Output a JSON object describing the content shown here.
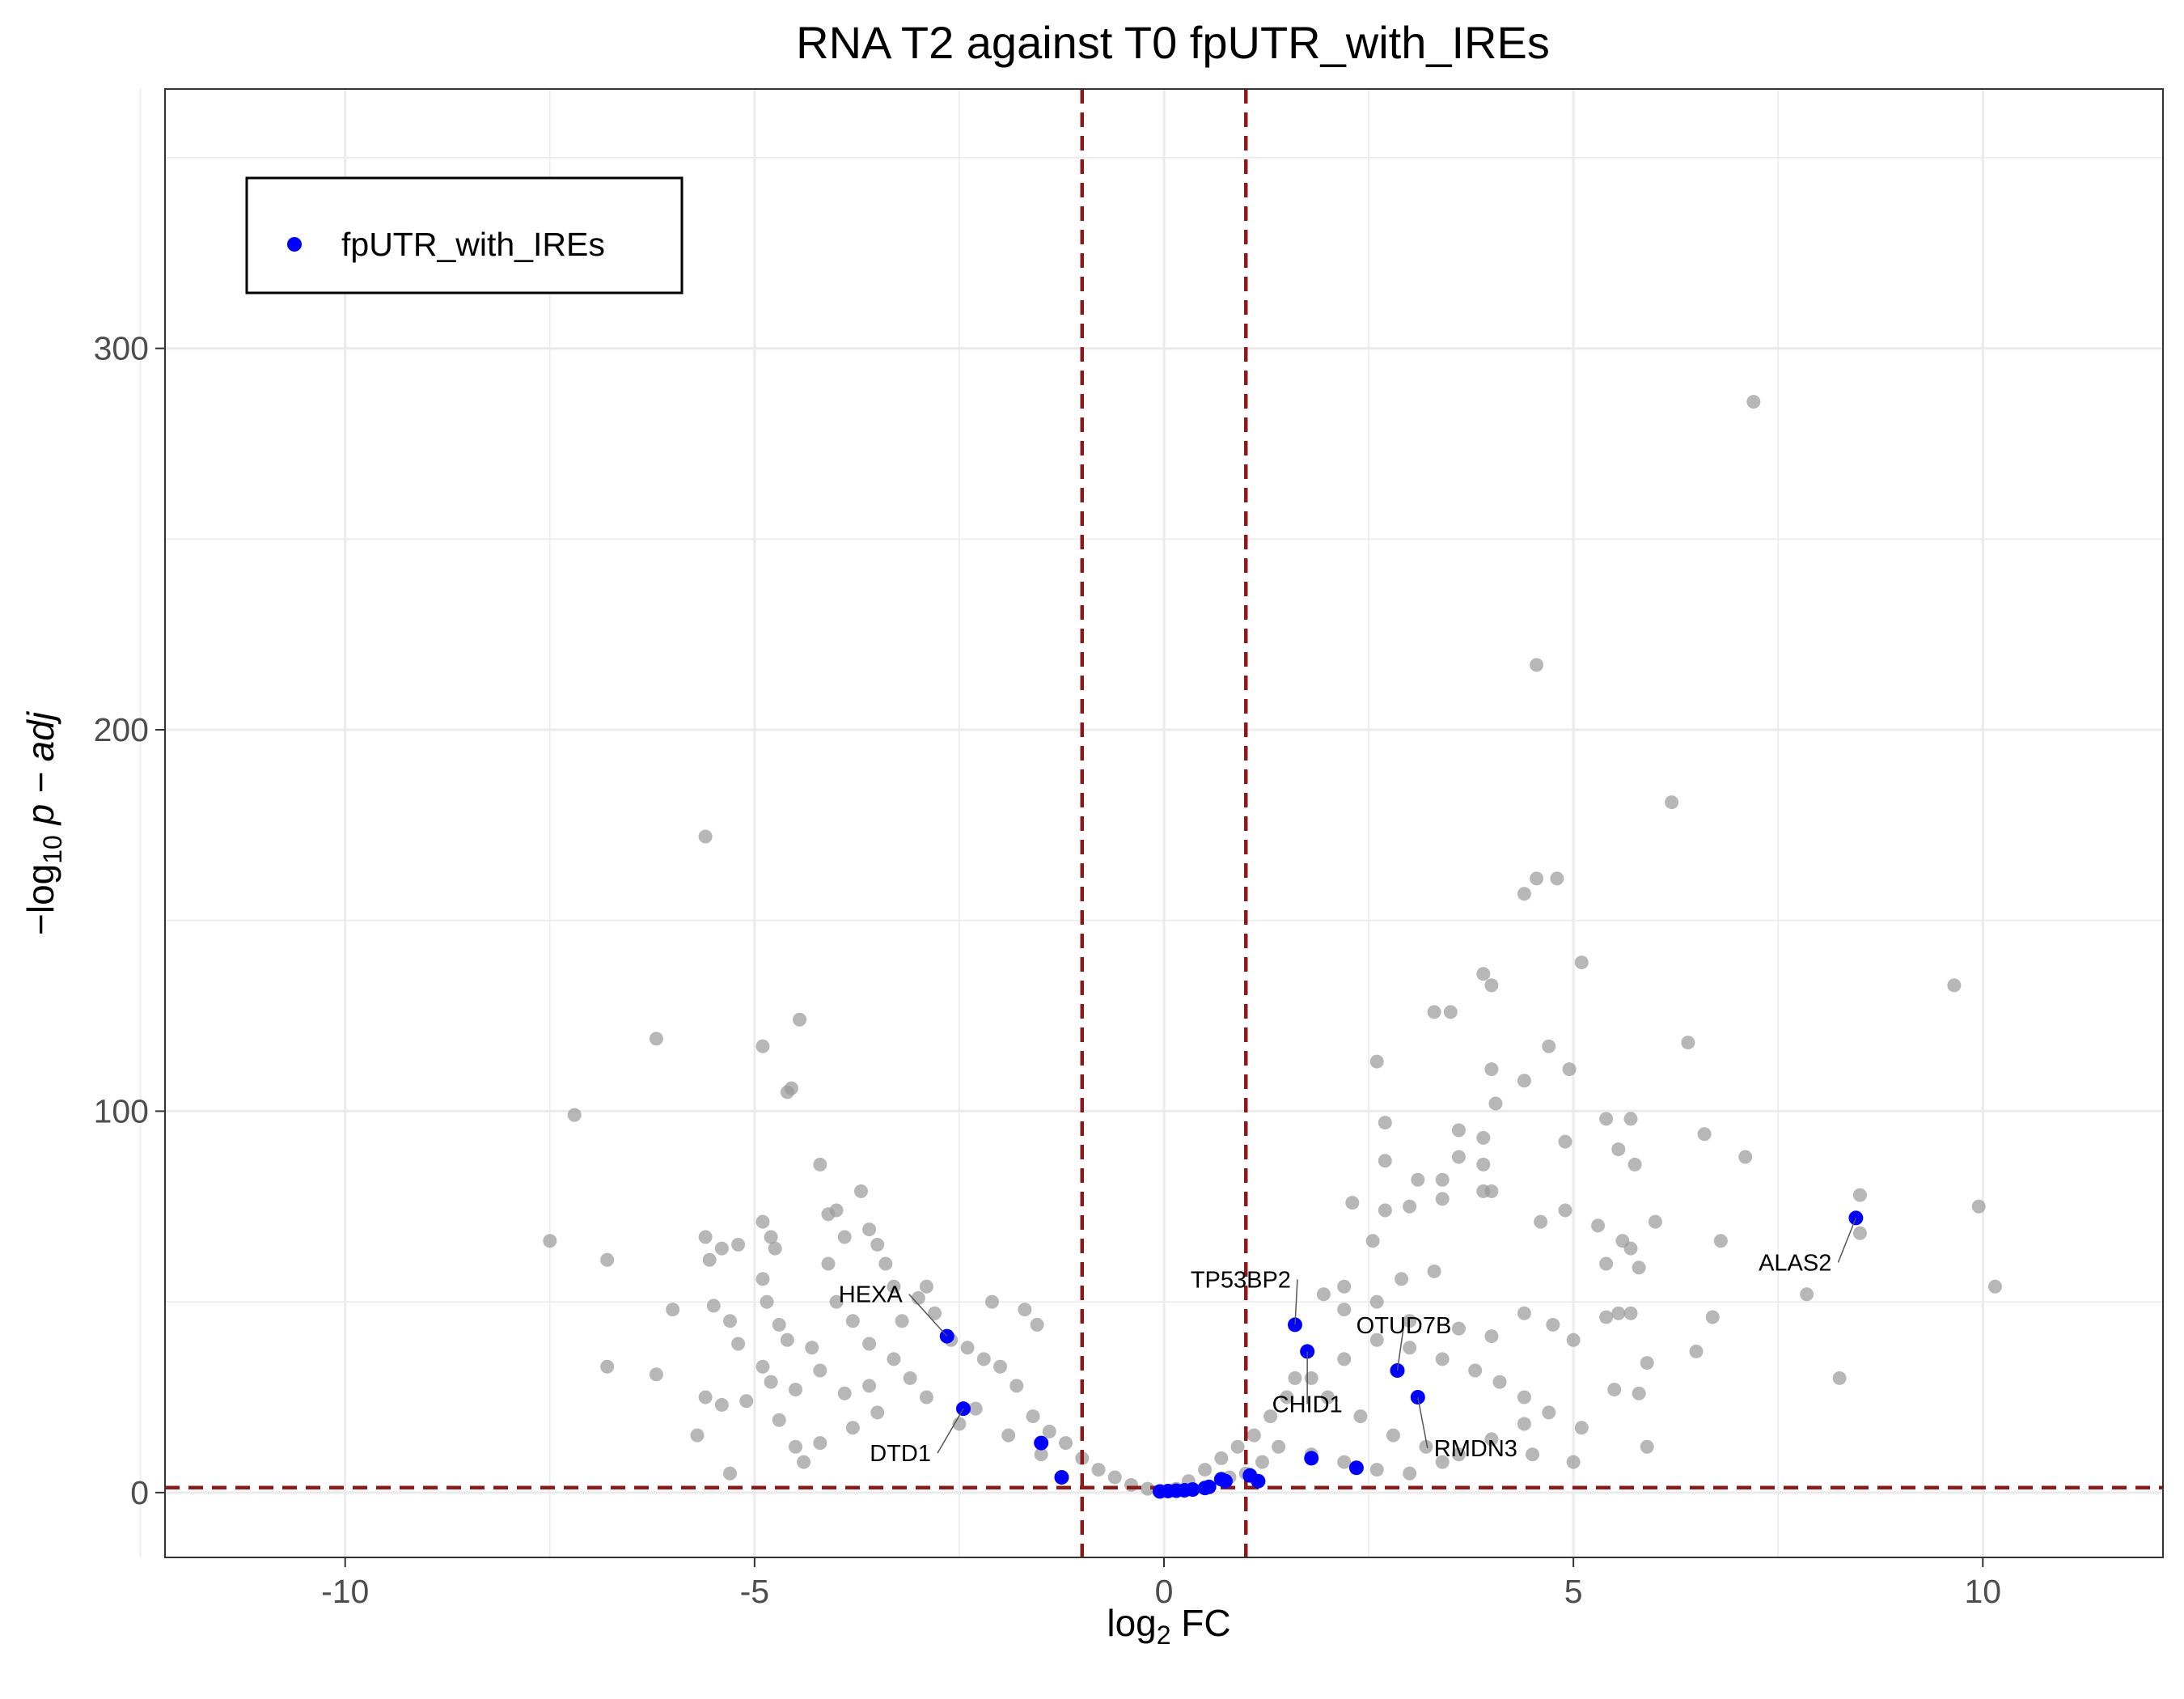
{
  "chart_data": {
    "type": "scatter",
    "title": "RNA T2 against T0 fpUTR_with_IREs",
    "xlabel": {
      "pre": "log",
      "sub": "2",
      "post": " FC"
    },
    "ylabel": {
      "pre": "−log",
      "sub": "10",
      "post": " p − adj"
    },
    "xlim": [
      -12.2,
      12.2
    ],
    "ylim": [
      -17,
      368
    ],
    "x_ticks": [
      -10,
      -5,
      0,
      5,
      10
    ],
    "x_tick_labels": [
      "-10",
      "-5",
      "0",
      "5",
      "10"
    ],
    "y_ticks": [
      0,
      100,
      200,
      300
    ],
    "y_tick_labels": [
      "0",
      "100",
      "200",
      "300"
    ],
    "grid": true,
    "legend": {
      "position": "top-left",
      "entries": [
        "fpUTR_with_IREs"
      ]
    },
    "thresholds": {
      "fc": [
        -1,
        1
      ],
      "padj": 1.3
    },
    "colors": {
      "background_points": "#999999",
      "highlight": "#0000ff",
      "threshold": "#8b1a1a",
      "grid": "#ebebeb"
    },
    "series": [
      {
        "name": "",
        "points": [
          [
            -7.5,
            66
          ],
          [
            -7.2,
            99
          ],
          [
            -6.8,
            61
          ],
          [
            -6.8,
            33
          ],
          [
            -6.2,
            119
          ],
          [
            -6.0,
            48
          ],
          [
            -6.2,
            31
          ],
          [
            -5.6,
            172
          ],
          [
            -5.6,
            67
          ],
          [
            -5.55,
            61
          ],
          [
            -5.4,
            64
          ],
          [
            -5.5,
            49
          ],
          [
            -5.3,
            45
          ],
          [
            -5.6,
            25
          ],
          [
            -5.2,
            65
          ],
          [
            -5.2,
            39
          ],
          [
            -5.3,
            5
          ],
          [
            -5.7,
            15
          ],
          [
            -5.4,
            23
          ],
          [
            -5.1,
            24
          ],
          [
            -4.9,
            117
          ],
          [
            -4.6,
            105
          ],
          [
            -4.55,
            106
          ],
          [
            -4.45,
            124
          ],
          [
            -4.9,
            71
          ],
          [
            -4.8,
            67
          ],
          [
            -4.75,
            64
          ],
          [
            -4.9,
            56
          ],
          [
            -4.85,
            50
          ],
          [
            -4.7,
            44
          ],
          [
            -4.6,
            40
          ],
          [
            -4.9,
            33
          ],
          [
            -4.8,
            29
          ],
          [
            -4.2,
            86
          ],
          [
            -4.1,
            73
          ],
          [
            -4.0,
            74
          ],
          [
            -3.9,
            67
          ],
          [
            -3.7,
            79
          ],
          [
            -3.6,
            69
          ],
          [
            -3.5,
            65
          ],
          [
            -3.4,
            60
          ],
          [
            -3.3,
            54
          ],
          [
            -4.1,
            60
          ],
          [
            -4.0,
            50
          ],
          [
            -3.8,
            45
          ],
          [
            -3.6,
            39
          ],
          [
            -4.3,
            38
          ],
          [
            -4.5,
            27
          ],
          [
            -4.7,
            19
          ],
          [
            -4.5,
            12
          ],
          [
            -4.4,
            8
          ],
          [
            -4.2,
            13
          ],
          [
            -3.8,
            17
          ],
          [
            -3.5,
            21
          ],
          [
            -3.2,
            45
          ],
          [
            -3.0,
            51
          ],
          [
            -2.9,
            54
          ],
          [
            -2.8,
            47
          ],
          [
            -2.6,
            40
          ],
          [
            -2.4,
            38
          ],
          [
            -2.2,
            35
          ],
          [
            -2.0,
            33
          ],
          [
            -1.8,
            28
          ],
          [
            -1.6,
            20
          ],
          [
            -1.4,
            16
          ],
          [
            -1.2,
            13
          ],
          [
            -1.0,
            9
          ],
          [
            -0.8,
            6
          ],
          [
            -0.6,
            4
          ],
          [
            -0.4,
            2
          ],
          [
            -0.2,
            1
          ],
          [
            -1.7,
            48
          ],
          [
            -1.55,
            44
          ],
          [
            -2.1,
            50
          ],
          [
            -3.1,
            30
          ],
          [
            -3.3,
            35
          ],
          [
            -2.9,
            25
          ],
          [
            -2.5,
            18
          ],
          [
            -2.3,
            22
          ],
          [
            -1.9,
            15
          ],
          [
            -1.5,
            10
          ],
          [
            -3.6,
            28
          ],
          [
            -3.9,
            26
          ],
          [
            -4.2,
            32
          ],
          [
            7.2,
            286
          ],
          [
            4.55,
            217
          ],
          [
            6.2,
            181
          ],
          [
            4.55,
            161
          ],
          [
            4.8,
            161
          ],
          [
            4.4,
            157
          ],
          [
            5.1,
            139
          ],
          [
            3.9,
            136
          ],
          [
            4.0,
            133
          ],
          [
            3.3,
            126
          ],
          [
            3.5,
            126
          ],
          [
            4.7,
            117
          ],
          [
            6.4,
            118
          ],
          [
            4.0,
            111
          ],
          [
            4.95,
            111
          ],
          [
            2.6,
            113
          ],
          [
            4.4,
            108
          ],
          [
            9.65,
            133
          ],
          [
            4.05,
            102
          ],
          [
            5.4,
            98
          ],
          [
            5.7,
            98
          ],
          [
            2.7,
            97
          ],
          [
            3.6,
            95
          ],
          [
            3.9,
            93
          ],
          [
            4.9,
            92
          ],
          [
            5.55,
            90
          ],
          [
            5.75,
            86
          ],
          [
            6.6,
            94
          ],
          [
            7.1,
            88
          ],
          [
            8.5,
            78
          ],
          [
            9.95,
            75
          ],
          [
            3.6,
            88
          ],
          [
            3.9,
            86
          ],
          [
            2.7,
            87
          ],
          [
            3.1,
            82
          ],
          [
            3.4,
            82
          ],
          [
            3.9,
            79
          ],
          [
            4.0,
            79
          ],
          [
            2.3,
            76
          ],
          [
            2.7,
            74
          ],
          [
            3.0,
            75
          ],
          [
            3.4,
            77
          ],
          [
            4.6,
            71
          ],
          [
            4.9,
            74
          ],
          [
            5.3,
            70
          ],
          [
            5.6,
            66
          ],
          [
            6.0,
            71
          ],
          [
            6.8,
            66
          ],
          [
            8.5,
            68
          ],
          [
            10.15,
            54
          ],
          [
            5.7,
            64
          ],
          [
            5.8,
            59
          ],
          [
            5.4,
            60
          ],
          [
            7.85,
            52
          ],
          [
            2.55,
            66
          ],
          [
            3.3,
            58
          ],
          [
            2.9,
            56
          ],
          [
            2.2,
            54
          ],
          [
            1.95,
            52
          ],
          [
            2.6,
            50
          ],
          [
            2.2,
            48
          ],
          [
            3.0,
            45
          ],
          [
            3.6,
            43
          ],
          [
            4.0,
            41
          ],
          [
            4.4,
            47
          ],
          [
            4.75,
            44
          ],
          [
            5.0,
            40
          ],
          [
            5.4,
            46
          ],
          [
            5.55,
            47
          ],
          [
            5.7,
            47
          ],
          [
            6.7,
            46
          ],
          [
            6.5,
            37
          ],
          [
            5.9,
            34
          ],
          [
            5.9,
            12
          ],
          [
            8.25,
            30
          ],
          [
            5.8,
            26
          ],
          [
            5.5,
            27
          ],
          [
            5.1,
            17
          ],
          [
            4.7,
            21
          ],
          [
            4.4,
            25
          ],
          [
            4.1,
            29
          ],
          [
            3.8,
            32
          ],
          [
            3.4,
            35
          ],
          [
            3.0,
            38
          ],
          [
            2.6,
            40
          ],
          [
            2.2,
            35
          ],
          [
            1.8,
            30
          ],
          [
            1.5,
            25
          ],
          [
            1.3,
            20
          ],
          [
            1.1,
            15
          ],
          [
            0.9,
            12
          ],
          [
            0.7,
            9
          ],
          [
            0.5,
            6
          ],
          [
            0.3,
            3
          ],
          [
            0.15,
            1
          ],
          [
            1.6,
            30
          ],
          [
            2.0,
            25
          ],
          [
            2.4,
            20
          ],
          [
            2.8,
            15
          ],
          [
            3.2,
            12
          ],
          [
            3.6,
            10
          ],
          [
            4.0,
            14
          ],
          [
            4.4,
            18
          ],
          [
            1.4,
            12
          ],
          [
            1.8,
            10
          ],
          [
            2.2,
            8
          ],
          [
            2.6,
            6
          ],
          [
            3.0,
            5
          ],
          [
            3.4,
            8
          ],
          [
            1.0,
            5
          ],
          [
            1.2,
            8
          ],
          [
            0.8,
            4
          ],
          [
            4.5,
            10
          ],
          [
            5.0,
            8
          ]
        ]
      },
      {
        "name": "fpUTR_with_IREs",
        "points": [
          [
            -2.65,
            41
          ],
          [
            -2.45,
            22
          ],
          [
            -1.5,
            13
          ],
          [
            -1.25,
            4
          ],
          [
            -0.05,
            0.3
          ],
          [
            0.05,
            0.4
          ],
          [
            0.15,
            0.5
          ],
          [
            0.25,
            0.6
          ],
          [
            0.35,
            0.8
          ],
          [
            0.5,
            1.2
          ],
          [
            0.55,
            1.5
          ],
          [
            0.7,
            3.5
          ],
          [
            0.75,
            3.0
          ],
          [
            1.05,
            4.5
          ],
          [
            1.15,
            3.0
          ],
          [
            1.6,
            44
          ],
          [
            1.75,
            37
          ],
          [
            1.8,
            9
          ],
          [
            2.35,
            6.5
          ],
          [
            2.85,
            32
          ],
          [
            3.1,
            25
          ],
          [
            8.45,
            72
          ]
        ]
      }
    ],
    "annotations": [
      {
        "text": "HEXA",
        "point": [
          -2.65,
          41
        ]
      },
      {
        "text": "DTD1",
        "point": [
          -2.45,
          22
        ]
      },
      {
        "text": "TP53BP2",
        "point": [
          1.6,
          44
        ]
      },
      {
        "text": "OTUD7B",
        "point": [
          2.85,
          32
        ]
      },
      {
        "text": "CHID1",
        "point": [
          1.75,
          37
        ]
      },
      {
        "text": "RMDN3",
        "point": [
          3.1,
          25
        ]
      },
      {
        "text": "ALAS2",
        "point": [
          8.45,
          72
        ]
      }
    ]
  }
}
